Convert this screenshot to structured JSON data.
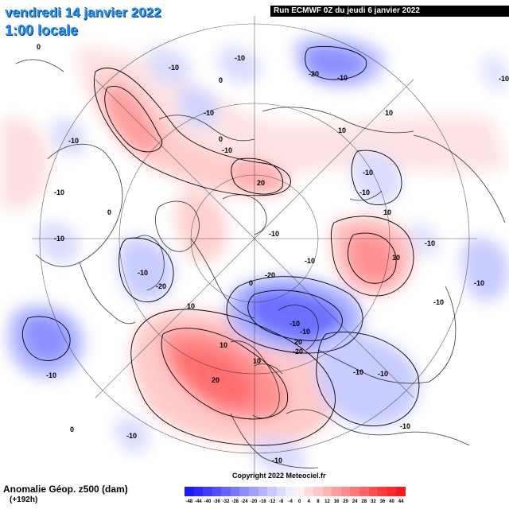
{
  "header": {
    "date": "vendredi 14 janvier 2022",
    "time": "1:00 locale",
    "run": "Run ECMWF 0Z du jeudi 6 janvier 2022"
  },
  "footer": {
    "title": "Anomalie Géop. z500 (dam)",
    "subtitle": "(+192h)",
    "copyright": "Copyright 2022 Meteociel.fr"
  },
  "legend": {
    "ticks": [
      "-48",
      "-44",
      "-40",
      "-36",
      "-32",
      "-28",
      "-24",
      "-20",
      "-16",
      "-12",
      "-8",
      "-4",
      "0",
      "4",
      "8",
      "12",
      "16",
      "20",
      "24",
      "28",
      "32",
      "36",
      "40",
      "44"
    ],
    "colors": [
      "#1a1aff",
      "#2b2bff",
      "#3d3dff",
      "#5050ff",
      "#6464ff",
      "#7878ff",
      "#8c8cff",
      "#a0a0ff",
      "#b4b4ff",
      "#c8c8ff",
      "#dcdcff",
      "#eeeeff",
      "#ffeeee",
      "#ffdcdc",
      "#ffc8c8",
      "#ffb4b4",
      "#ffa0a0",
      "#ff8c8c",
      "#ff7878",
      "#ff6464",
      "#ff5050",
      "#ff3d3d",
      "#ff2b2b",
      "#ff1a1a"
    ]
  },
  "contour_labels": [
    "0",
    "-10",
    "-10",
    "0",
    "-10",
    "-20",
    "-10",
    "-10",
    "-10",
    "0",
    "-10",
    "10",
    "-10",
    "10",
    "-10",
    "10",
    "20",
    "-10",
    "-10",
    "10",
    "-10",
    "-10",
    "-10",
    "-10",
    "-20",
    "10",
    "-20",
    "-10",
    "-10",
    "0",
    "-10",
    "20",
    "10",
    "20",
    "-20",
    "-10",
    "-10",
    "-10",
    "10",
    "0",
    "-10",
    "-10",
    "-10",
    "0",
    "-10"
  ]
}
